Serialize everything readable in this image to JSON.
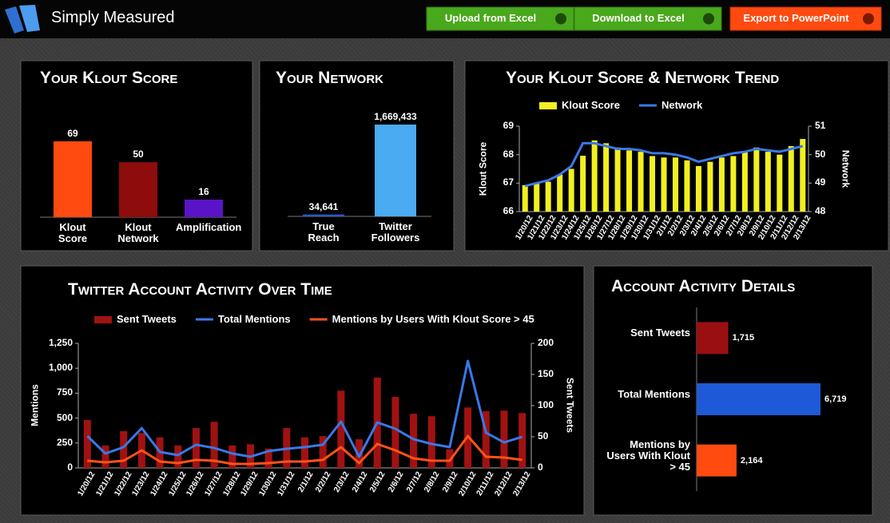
{
  "header": {
    "logo": "Simply Measured",
    "buttons": [
      "Upload from Excel",
      "Download to Excel",
      "Export to PowerPoint"
    ]
  },
  "chart_data": [
    {
      "type": "bar",
      "title": "Your Klout Score",
      "categories": [
        "Klout Score",
        "Klout Network",
        "Amplification"
      ],
      "values": [
        69,
        50,
        16
      ],
      "colors": [
        "#ff4a10",
        "#8e0c0c",
        "#5a14c8"
      ]
    },
    {
      "type": "bar",
      "title": "Your Network",
      "categories": [
        "True Reach",
        "Twitter Followers"
      ],
      "values": [
        34641,
        1669433
      ],
      "value_labels": [
        "34,641",
        "1,669,433"
      ],
      "colors": [
        "#2a58c8",
        "#4aaaf2"
      ]
    },
    {
      "type": "bar_line",
      "title": "Your Klout Score & Network Trend",
      "x": [
        "1/20/12",
        "1/21/12",
        "1/22/12",
        "1/23/12",
        "1/24/12",
        "1/25/12",
        "1/26/12",
        "1/27/12",
        "1/28/12",
        "1/29/12",
        "1/30/12",
        "1/31/12",
        "2/1/12",
        "2/2/12",
        "2/3/12",
        "2/4/12",
        "2/5/12",
        "2/6/12",
        "2/7/12",
        "2/8/12",
        "2/9/12",
        "2/10/12",
        "2/11/12",
        "2/12/12",
        "2/13/12"
      ],
      "ylabel": "Klout Score",
      "y2label": "Network",
      "ylim": [
        66,
        69
      ],
      "yticks": [
        66,
        67,
        68,
        69
      ],
      "y2lim": [
        48,
        51
      ],
      "y2ticks": [
        48,
        49,
        50,
        51
      ],
      "series": [
        {
          "name": "Klout Score",
          "type": "bar",
          "color": "#f2f020",
          "values": [
            66.93,
            67.0,
            67.05,
            67.3,
            67.5,
            67.96,
            68.5,
            68.4,
            68.25,
            68.15,
            68.1,
            67.95,
            67.9,
            67.9,
            67.8,
            67.6,
            67.75,
            67.9,
            67.95,
            68.1,
            68.25,
            68.1,
            68.0,
            68.3,
            68.55
          ]
        },
        {
          "name": "Network",
          "type": "line",
          "axis": "y2",
          "color": "#3a78e8",
          "values": [
            48.9,
            49.0,
            49.1,
            49.3,
            49.6,
            50.4,
            50.4,
            50.3,
            50.2,
            50.2,
            50.15,
            50.05,
            50.05,
            50.0,
            49.9,
            49.75,
            49.85,
            49.95,
            50.05,
            50.1,
            50.2,
            50.15,
            50.1,
            50.2,
            50.3
          ]
        }
      ]
    },
    {
      "type": "bar_line",
      "title": "Twitter Account Activity Over Time",
      "x": [
        "1/20/12",
        "1/21/12",
        "1/22/12",
        "1/23/12",
        "1/24/12",
        "1/25/12",
        "1/26/12",
        "1/27/12",
        "1/28/12",
        "1/29/12",
        "1/30/12",
        "1/31/12",
        "2/1/12",
        "2/2/12",
        "2/3/12",
        "2/4/12",
        "2/5/12",
        "2/6/12",
        "2/7/12",
        "2/8/12",
        "2/9/12",
        "2/10/12",
        "2/11/12",
        "2/12/12",
        "2/13/12"
      ],
      "ylabel": "Mentions",
      "y2label": "Sent Tweets",
      "ylim": [
        0,
        1250
      ],
      "yticks": [
        0,
        250,
        500,
        750,
        {
          "value": 1000,
          "label": "1,000"
        },
        {
          "value": 1250,
          "label": "1,250"
        }
      ],
      "y2lim": [
        0,
        200
      ],
      "y2ticks": [
        0,
        50,
        100,
        150,
        200
      ],
      "series": [
        {
          "name": "Sent Tweets",
          "type": "bar",
          "axis": "y2",
          "color": "#a01212",
          "values": [
            77,
            36,
            59,
            56,
            49,
            36,
            64,
            74,
            36,
            38,
            31,
            64,
            49,
            51,
            124,
            46,
            145,
            114,
            87,
            83,
            30,
            97,
            91,
            92,
            88
          ]
        },
        {
          "name": "Total Mentions",
          "type": "line",
          "color": "#3a78e8",
          "values": [
            320,
            144,
            208,
            400,
            160,
            128,
            232,
            200,
            144,
            112,
            168,
            192,
            208,
            232,
            465,
            112,
            457,
            393,
            288,
            240,
            208,
            1074,
            353,
            256,
            312
          ]
        },
        {
          "name": "Mentions by Users With Klout Score > 45",
          "type": "line",
          "color": "#ff5218",
          "values": [
            72,
            56,
            72,
            176,
            64,
            48,
            80,
            72,
            40,
            40,
            48,
            64,
            64,
            80,
            208,
            48,
            240,
            176,
            96,
            72,
            72,
            320,
            112,
            104,
            80
          ]
        }
      ]
    },
    {
      "type": "hbar",
      "title": "Account Activity Details",
      "categories": [
        "Sent Tweets",
        "Total Mentions",
        "Mentions by Users With Klout > 45"
      ],
      "values": [
        1715,
        6719,
        2164
      ],
      "value_labels": [
        "1,715",
        "6,719",
        "2,164"
      ],
      "colors": [
        "#9a1010",
        "#1e5ad8",
        "#ff4a10"
      ]
    }
  ]
}
